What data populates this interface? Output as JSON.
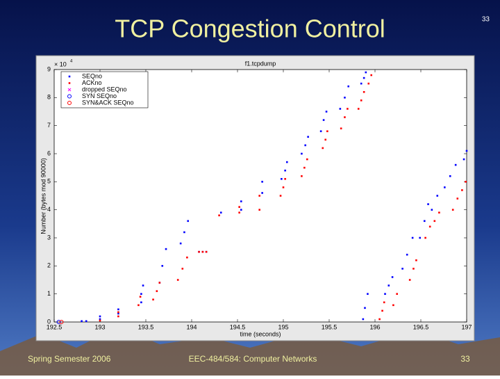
{
  "slide": {
    "title": "TCP Congestion Control",
    "page_number": "33",
    "footer_left": "Spring Semester 2006",
    "footer_center": "EEC-484/584: Computer Networks",
    "footer_right": "33"
  },
  "chart_data": {
    "type": "scatter",
    "title": "f1.tcpdump",
    "x_label": "time (seconds)",
    "y_label": "Number (bytes mod 90000)",
    "y_scale_label": "× 10",
    "y_scale_exponent": "4",
    "xlim": [
      192.5,
      197
    ],
    "xticks": [
      192.5,
      193,
      193.5,
      194,
      194.5,
      195,
      195.5,
      196,
      196.5,
      197
    ],
    "ylim": [
      0,
      9
    ],
    "yticks": [
      0,
      1,
      2,
      3,
      4,
      5,
      6,
      7,
      8,
      9
    ],
    "legend": "top-left",
    "series": [
      {
        "name": "SEQno",
        "color": "#0000ff",
        "marker": "dot",
        "x": [
          192.8,
          192.85,
          193.0,
          193.0,
          193.2,
          193.2,
          193.45,
          193.45,
          193.47,
          193.65,
          193.68,
          193.72,
          193.88,
          193.92,
          193.96,
          194.08,
          194.12,
          194.16,
          194.32,
          194.54,
          194.54,
          194.77,
          194.77,
          194.98,
          195.02,
          195.04,
          195.2,
          195.24,
          195.27,
          195.41,
          195.44,
          195.47,
          195.62,
          195.67,
          195.71,
          195.85,
          195.88,
          195.9,
          195.87,
          195.89,
          195.92,
          196.11,
          196.15,
          196.19,
          196.3,
          196.35,
          196.41,
          196.49,
          196.54,
          196.58,
          196.62,
          196.68,
          196.76,
          196.82,
          196.88,
          196.97,
          197.0
        ],
        "values": [
          0.03,
          0.03,
          0.1,
          0.2,
          0.3,
          0.45,
          0.7,
          1.0,
          1.3,
          1.4,
          2.0,
          2.6,
          2.8,
          3.2,
          3.6,
          2.5,
          2.5,
          2.5,
          3.9,
          4.0,
          4.3,
          4.6,
          5.0,
          5.1,
          5.4,
          5.7,
          6.0,
          6.3,
          6.6,
          6.8,
          7.2,
          7.5,
          7.6,
          8.0,
          8.4,
          8.5,
          8.7,
          8.9,
          0.1,
          0.5,
          1.0,
          1.0,
          1.3,
          1.6,
          1.9,
          2.4,
          3.0,
          3.0,
          3.6,
          4.2,
          4.0,
          4.5,
          4.8,
          5.2,
          5.6,
          5.8,
          6.1
        ]
      },
      {
        "name": "ACKno",
        "color": "#ff0000",
        "marker": "dot",
        "x": [
          193.0,
          193.2,
          193.2,
          193.42,
          193.44,
          193.58,
          193.62,
          193.65,
          193.85,
          193.9,
          193.95,
          194.08,
          194.12,
          194.16,
          194.3,
          194.52,
          194.52,
          194.74,
          194.74,
          194.97,
          195.0,
          195.02,
          195.2,
          195.23,
          195.26,
          195.43,
          195.46,
          195.48,
          195.63,
          195.67,
          195.7,
          195.82,
          195.85,
          195.88,
          195.93,
          195.96,
          196.05,
          196.08,
          196.1,
          196.2,
          196.24,
          196.38,
          196.42,
          196.45,
          196.55,
          196.6,
          196.65,
          196.7,
          196.85,
          196.9,
          196.95,
          196.99
        ],
        "values": [
          0.05,
          0.2,
          0.35,
          0.6,
          0.9,
          0.8,
          1.1,
          1.4,
          1.5,
          1.9,
          2.3,
          2.5,
          2.5,
          2.5,
          3.8,
          3.9,
          4.1,
          4.0,
          4.5,
          4.5,
          4.8,
          5.1,
          5.2,
          5.5,
          5.8,
          6.2,
          6.5,
          6.8,
          6.9,
          7.3,
          7.6,
          7.6,
          7.9,
          8.2,
          8.5,
          8.8,
          0.1,
          0.4,
          0.7,
          0.6,
          1.0,
          1.5,
          1.9,
          2.2,
          3.0,
          3.4,
          3.6,
          3.9,
          4.0,
          4.4,
          4.7,
          5.0
        ]
      },
      {
        "name": "dropped SEQno",
        "color": "#ff00ff",
        "marker": "cross",
        "x": [],
        "values": []
      },
      {
        "name": "SYN SEQno",
        "color": "#0000ff",
        "marker": "circle",
        "x": [
          192.55
        ],
        "values": [
          0
        ]
      },
      {
        "name": "SYN&ACK SEQno",
        "color": "#ff0000",
        "marker": "circle",
        "x": [
          192.58
        ],
        "values": [
          0
        ]
      }
    ]
  }
}
